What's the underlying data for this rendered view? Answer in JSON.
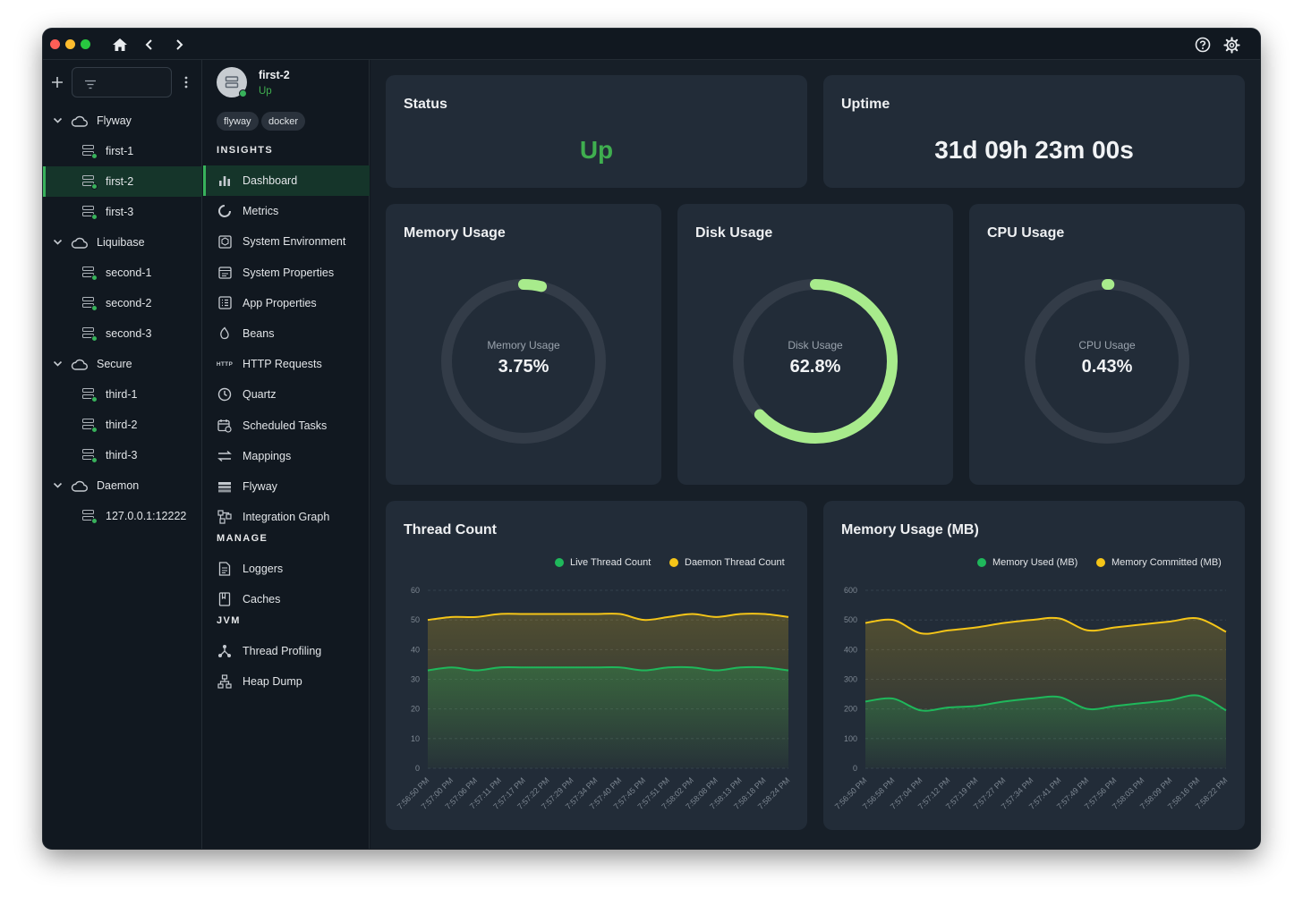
{
  "colors": {
    "accent": "#38b25b",
    "up_text": "#3fae4f",
    "gauge_green": "#a8eb8c",
    "live": "#1fb85b",
    "daemon": "#f5c518"
  },
  "titlebar": {
    "home_icon": "home-icon",
    "back_icon": "chevron-left-icon",
    "forward_icon": "chevron-right-icon",
    "help_icon": "help-icon",
    "settings_icon": "gear-icon"
  },
  "sidebar": {
    "add_icon": "plus-icon",
    "filter_icon": "filter-icon",
    "more_icon": "more-vertical-icon",
    "groups": [
      {
        "name": "Flyway",
        "items": [
          "first-1",
          "first-2",
          "first-3"
        ]
      },
      {
        "name": "Liquibase",
        "items": [
          "second-1",
          "second-2",
          "second-3"
        ]
      },
      {
        "name": "Secure",
        "items": [
          "third-1",
          "third-2",
          "third-3"
        ]
      },
      {
        "name": "Daemon",
        "items": [
          "127.0.0.1:12222"
        ]
      }
    ],
    "selected": "first-2"
  },
  "instance": {
    "name": "first-2",
    "status": "Up",
    "tags": [
      "flyway",
      "docker"
    ],
    "sections": [
      {
        "label": "INSIGHTS",
        "items": [
          "Dashboard",
          "Metrics",
          "System Environment",
          "System Properties",
          "App Properties",
          "Beans",
          "HTTP Requests",
          "Quartz",
          "Scheduled Tasks",
          "Mappings",
          "Flyway",
          "Integration Graph"
        ]
      },
      {
        "label": "MANAGE",
        "items": [
          "Loggers",
          "Caches"
        ]
      },
      {
        "label": "JVM",
        "items": [
          "Thread Profiling",
          "Heap Dump"
        ]
      }
    ],
    "http_icon_text": "HTTP",
    "selected": "Dashboard"
  },
  "dashboard": {
    "status": {
      "title": "Status",
      "value": "Up"
    },
    "uptime": {
      "title": "Uptime",
      "value": "31d 09h 23m 00s"
    },
    "memory": {
      "title": "Memory Usage",
      "label": "Memory Usage",
      "value_text": "3.75%",
      "percent": 3.75
    },
    "disk": {
      "title": "Disk Usage",
      "label": "Disk Usage",
      "value_text": "62.8%",
      "percent": 62.8
    },
    "cpu": {
      "title": "CPU Usage",
      "label": "CPU Usage",
      "value_text": "0.43%",
      "percent": 0.43
    }
  },
  "chart_data": [
    {
      "type": "area",
      "title": "Thread Count",
      "ylim": [
        0,
        60
      ],
      "yticks": [
        0,
        10,
        20,
        30,
        40,
        50,
        60
      ],
      "x": [
        "7:56:50 PM",
        "7:57:00 PM",
        "7:57:06 PM",
        "7:57:11 PM",
        "7:57:17 PM",
        "7:57:22 PM",
        "7:57:29 PM",
        "7:57:34 PM",
        "7:57:40 PM",
        "7:57:45 PM",
        "7:57:51 PM",
        "7:58:02 PM",
        "7:58:08 PM",
        "7:58:13 PM",
        "7:58:18 PM",
        "7:58:24 PM"
      ],
      "series": [
        {
          "name": "Live Thread Count",
          "color": "#1fb85b",
          "values": [
            33,
            34,
            33,
            34,
            34,
            34,
            34,
            34,
            34,
            33,
            34,
            34,
            33,
            34,
            34,
            33
          ]
        },
        {
          "name": "Daemon Thread Count",
          "color": "#f5c518",
          "values": [
            50,
            51,
            51,
            52,
            52,
            52,
            52,
            52,
            52,
            50,
            51,
            52,
            51,
            52,
            52,
            51
          ]
        }
      ]
    },
    {
      "type": "area",
      "title": "Memory Usage (MB)",
      "ylim": [
        0,
        600
      ],
      "yticks": [
        0,
        100,
        200,
        300,
        400,
        500,
        600
      ],
      "x": [
        "7:56:50 PM",
        "7:56:58 PM",
        "7:57:04 PM",
        "7:57:12 PM",
        "7:57:19 PM",
        "7:57:27 PM",
        "7:57:34 PM",
        "7:57:41 PM",
        "7:57:49 PM",
        "7:57:56 PM",
        "7:58:03 PM",
        "7:58:09 PM",
        "7:58:16 PM",
        "7:58:22 PM"
      ],
      "series": [
        {
          "name": "Memory Used (MB)",
          "color": "#1fb85b",
          "values": [
            225,
            235,
            195,
            205,
            210,
            225,
            235,
            240,
            200,
            210,
            220,
            230,
            245,
            195
          ]
        },
        {
          "name": "Memory Committed (MB)",
          "color": "#f5c518",
          "values": [
            490,
            500,
            455,
            465,
            475,
            490,
            500,
            505,
            465,
            475,
            485,
            495,
            505,
            460
          ]
        }
      ]
    }
  ]
}
